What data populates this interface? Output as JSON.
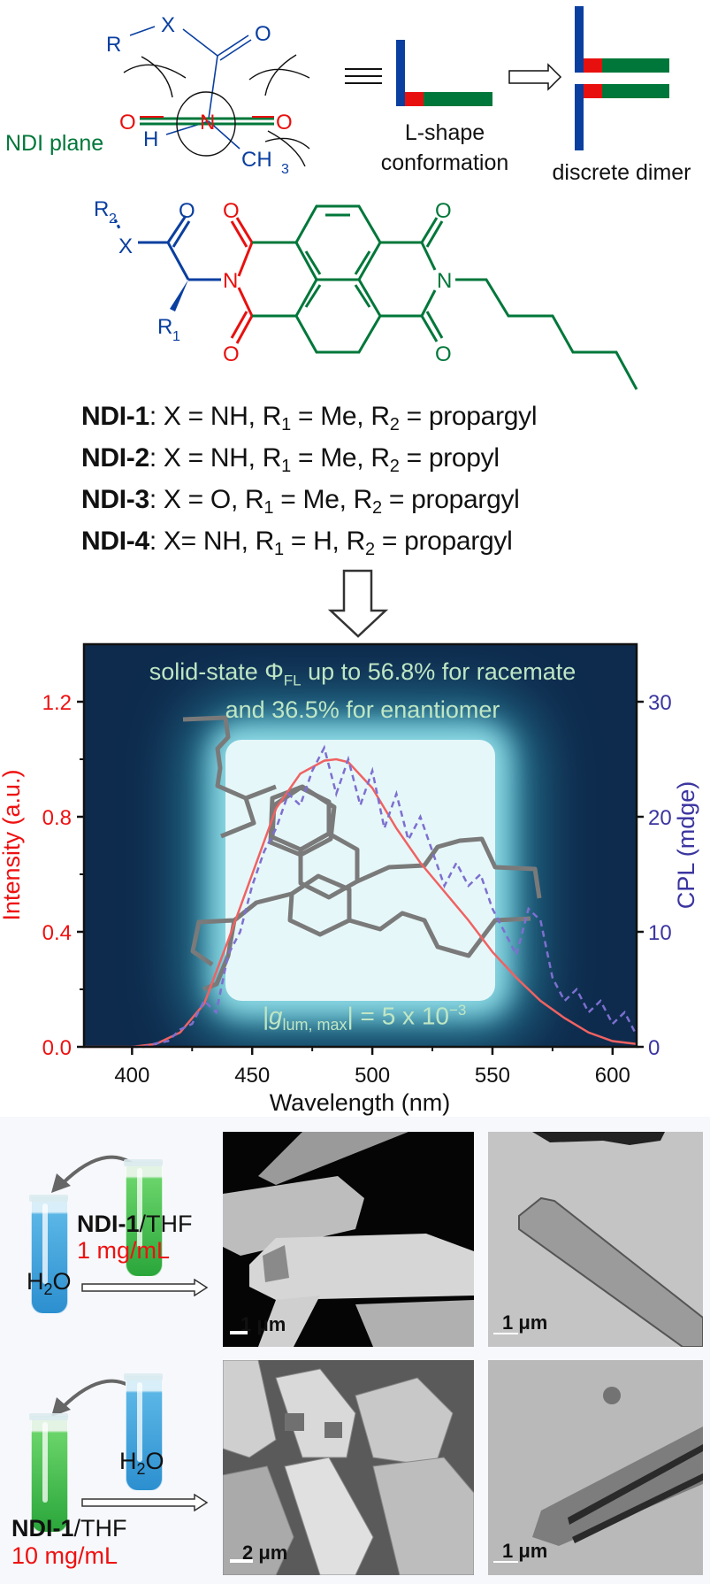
{
  "scheme": {
    "r_label": "R",
    "x_label": "X",
    "o_label": "O",
    "n_label": "N",
    "h_label": "H",
    "ch3_label": "CH",
    "ch3_sub": "3",
    "ndi_plane_label": "NDI plane",
    "lshape_label_1": "L-shape",
    "lshape_label_2": "conformation",
    "dimer_label": "discrete dimer",
    "colors": {
      "blue": "#0a3fa0",
      "red": "#e8100f",
      "green": "#00773a"
    }
  },
  "structure": {
    "r2": "R",
    "r2_sub": "2",
    "r1": "R",
    "r1_sub": "1",
    "x": "X",
    "o": "O",
    "n": "N"
  },
  "compounds": [
    {
      "name": "NDI-1",
      "parts": [
        ": X = NH, R",
        "1",
        " = Me, R",
        "2",
        " = propargyl"
      ]
    },
    {
      "name": "NDI-2",
      "parts": [
        ": X = NH, R",
        "1",
        " = Me, R",
        "2",
        " = propyl"
      ]
    },
    {
      "name": "NDI-3",
      "parts": [
        ": X = O, R",
        "1",
        " = Me, R",
        "2",
        " = propargyl"
      ]
    },
    {
      "name": "NDI-4",
      "parts": [
        ": X= NH, R",
        "1",
        " = H, R",
        "2",
        " = propargyl"
      ]
    }
  ],
  "chart_data": {
    "type": "line",
    "annotation_line1_a": "solid-state Φ",
    "annotation_line1_sub": "FL",
    "annotation_line1_b": " up to 56.8% for racemate",
    "annotation_line2": "and 36.5% for enantiomer",
    "glum_prefix": "|g",
    "glum_sub": "lum, max",
    "glum_suffix": "| = 5 x 10",
    "glum_exp": "−3",
    "xlabel": "Wavelength (nm)",
    "ylabel": "Intensity (a.u.)",
    "y2label": "CPL (mdge)",
    "xlim": [
      380,
      610
    ],
    "ylim": [
      0,
      1.4
    ],
    "y2lim": [
      0,
      35
    ],
    "x_ticks": [
      400,
      450,
      500,
      550,
      600
    ],
    "y_ticks": [
      "0.0",
      "0.4",
      "0.8",
      "1.2"
    ],
    "y2_ticks": [
      "0",
      "10",
      "20",
      "30"
    ],
    "colors": {
      "intensity": "#f06262",
      "cpl": "#7d6fd0",
      "left_axis": "#ee1111",
      "right_axis": "#3b35a0"
    },
    "series": [
      {
        "name": "Intensity",
        "axis": "left",
        "style": "solid",
        "x": [
          380,
          400,
          410,
          420,
          430,
          440,
          450,
          460,
          470,
          480,
          485,
          490,
          500,
          510,
          520,
          530,
          540,
          550,
          560,
          570,
          580,
          590,
          600,
          610
        ],
        "y": [
          0,
          0,
          0.01,
          0.05,
          0.15,
          0.37,
          0.6,
          0.83,
          0.95,
          0.995,
          1.0,
          0.99,
          0.9,
          0.76,
          0.64,
          0.54,
          0.44,
          0.33,
          0.24,
          0.16,
          0.1,
          0.05,
          0.02,
          0.01
        ]
      },
      {
        "name": "CPL",
        "axis": "right",
        "style": "dashed",
        "x": [
          400,
          405,
          410,
          415,
          420,
          425,
          430,
          435,
          440,
          445,
          450,
          455,
          460,
          465,
          470,
          475,
          480,
          485,
          490,
          495,
          500,
          505,
          510,
          515,
          520,
          525,
          530,
          535,
          540,
          545,
          550,
          555,
          560,
          565,
          570,
          575,
          580,
          585,
          590,
          595,
          600,
          605,
          610
        ],
        "y": [
          0,
          0,
          0.3,
          0.5,
          1.5,
          2,
          4,
          3,
          8,
          10,
          14,
          17,
          19,
          22,
          21,
          24,
          26,
          22,
          25,
          21,
          24,
          19,
          22,
          18,
          20,
          17,
          14,
          16,
          14,
          15,
          12,
          10,
          8,
          12,
          11,
          6,
          4,
          5,
          3,
          4,
          2,
          3,
          1
        ]
      }
    ]
  },
  "bottom": {
    "row1": {
      "compound": "NDI-1",
      "solvent": "/THF",
      "concentration": "1 mg/mL",
      "water": "H",
      "water_sub": "2",
      "water_o": "O",
      "sem_scale": "1 μm",
      "tem_scale": "1 μm"
    },
    "row2": {
      "compound": "NDI-1",
      "solvent": "/THF",
      "concentration": "10 mg/mL",
      "water": "H",
      "water_sub": "2",
      "water_o": "O",
      "sem_scale": "2 μm",
      "tem_scale": "1 μm"
    }
  }
}
